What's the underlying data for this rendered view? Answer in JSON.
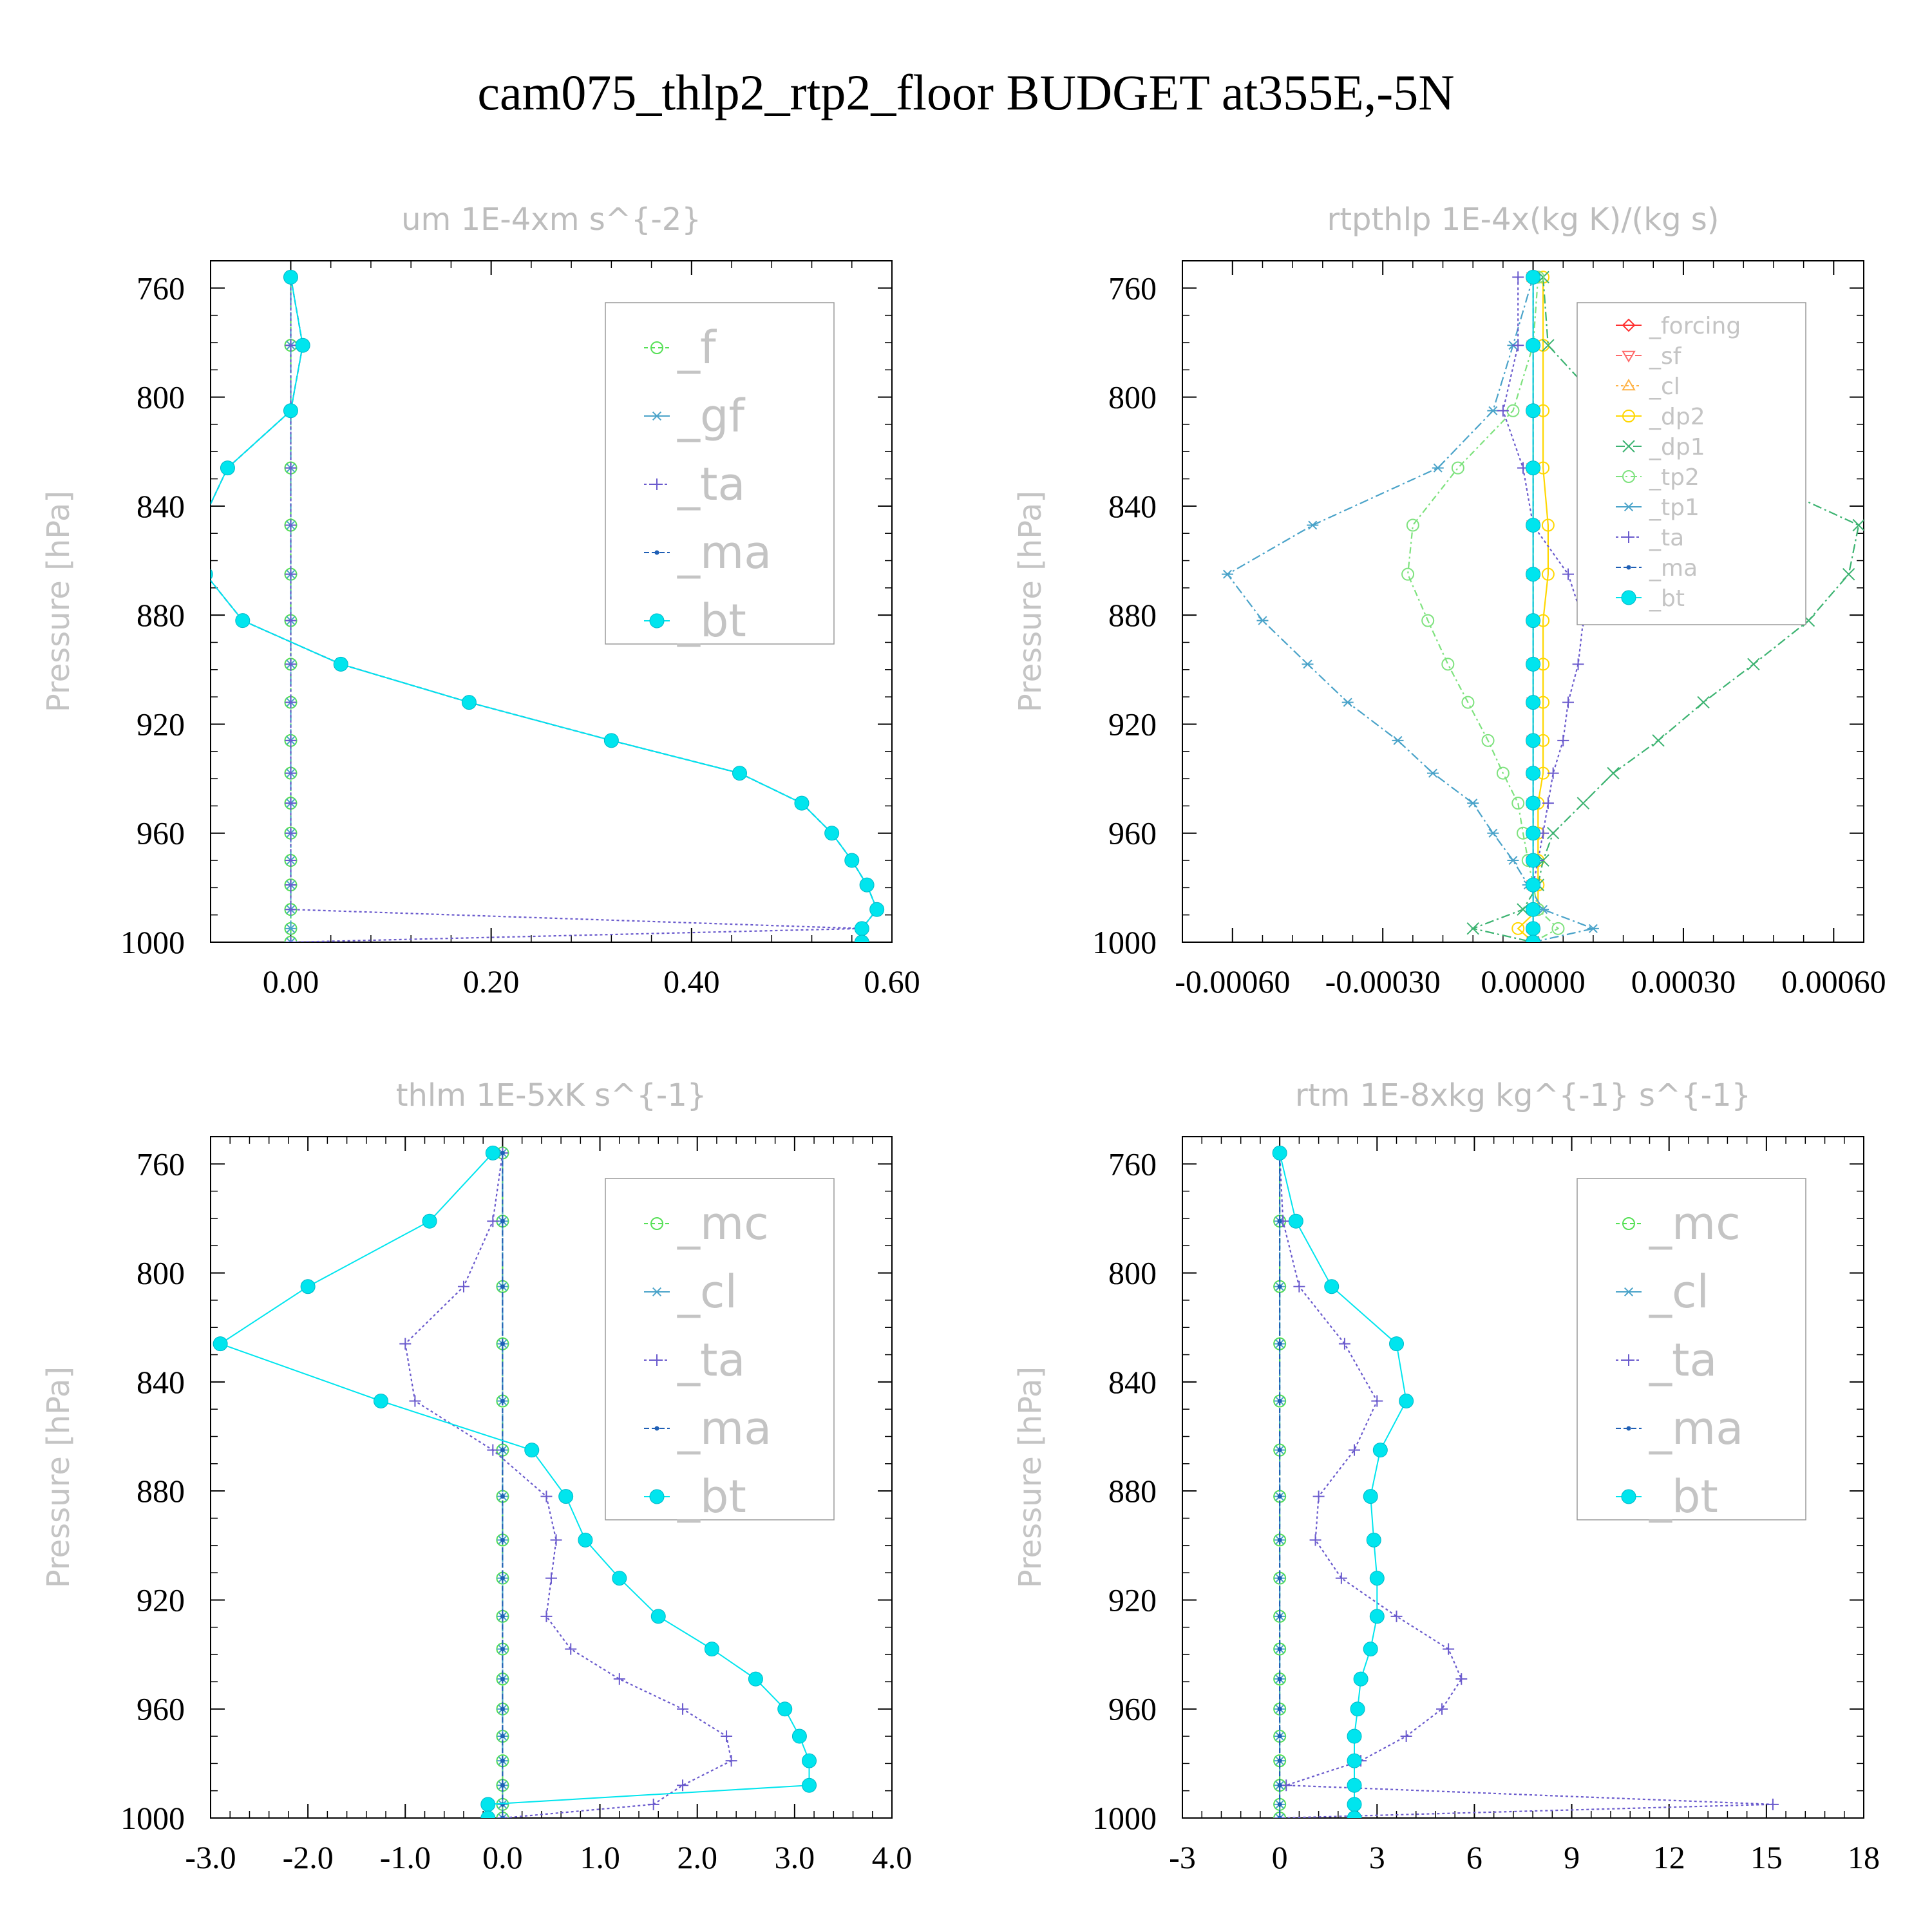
{
  "title": "cam075_thlp2_rtp2_floor  BUDGET at355E,-5N",
  "chart_data": [
    {
      "type": "line",
      "title": "um  1E-4xm s^{-2}",
      "ylabel": "Pressure [hPa]",
      "xlim": [
        -0.08,
        0.6
      ],
      "xticks": [
        0.0,
        0.2,
        0.4,
        0.6
      ],
      "xtick_labels": [
        "0.00",
        "0.20",
        "0.40",
        "0.60"
      ],
      "ylim": [
        750,
        1000
      ],
      "yticks": [
        760,
        800,
        840,
        880,
        920,
        960,
        1000
      ],
      "ytick_labels": [
        "760",
        "800",
        "840",
        "880",
        "920",
        "960",
        "1000"
      ],
      "legend": "top-right",
      "legend_size": "large",
      "levels": [
        756,
        781,
        805,
        826,
        847,
        865,
        882,
        898,
        912,
        926,
        938,
        949,
        960,
        970,
        979,
        988,
        995,
        1000
      ],
      "series": [
        {
          "name": "_f",
          "color": "#55e055",
          "marker": "circle",
          "dash": "6,5",
          "values": [
            0,
            0,
            0,
            0,
            0,
            0,
            0,
            0,
            0,
            0,
            0,
            0,
            0,
            0,
            0,
            0,
            0,
            0
          ]
        },
        {
          "name": "_gf",
          "color": "#4aa3c9",
          "marker": "asterisk",
          "dash": "14,5,3,5",
          "values": [
            0,
            0,
            0,
            0,
            0,
            0,
            0,
            0,
            0,
            0,
            0,
            0,
            0,
            0,
            0,
            0,
            0,
            0
          ]
        },
        {
          "name": "_ta",
          "color": "#6a5acd",
          "marker": "plus",
          "dash": "4,4",
          "values": [
            0,
            0,
            0,
            0,
            0,
            0,
            0,
            0,
            0,
            0,
            0,
            0,
            0,
            0,
            0,
            0,
            0.57,
            0
          ]
        },
        {
          "name": "_ma",
          "color": "#1f5fb5",
          "marker": "dot",
          "dash": "8,4",
          "values": [
            0,
            0.012,
            0,
            -0.063,
            -0.09,
            -0.085,
            -0.048,
            0.05,
            0.178,
            0.32,
            0.448,
            0.51,
            0.54,
            0.56,
            0.575,
            0.585,
            0.57,
            0.57
          ]
        },
        {
          "name": "_bt",
          "color": "#00e5ee",
          "marker": "filled",
          "dash": "",
          "values": [
            0,
            0.012,
            0,
            -0.063,
            -0.09,
            -0.085,
            -0.048,
            0.05,
            0.178,
            0.32,
            0.448,
            0.51,
            0.54,
            0.56,
            0.575,
            0.585,
            0.57,
            0.57
          ]
        }
      ]
    },
    {
      "type": "line",
      "title": "rtpthlp  1E-4x(kg K)/(kg s)",
      "ylabel": "Pressure [hPa]",
      "xlim": [
        -0.0007,
        0.00066
      ],
      "xticks": [
        -0.0006,
        -0.0003,
        0.0,
        0.0003,
        0.0006
      ],
      "xtick_labels": [
        "-0.00060",
        "-0.00030",
        "0.00000",
        "0.00030",
        "0.00060"
      ],
      "ylim": [
        750,
        1000
      ],
      "yticks": [
        760,
        800,
        840,
        880,
        920,
        960,
        1000
      ],
      "ytick_labels": [
        "760",
        "800",
        "840",
        "880",
        "920",
        "960",
        "1000"
      ],
      "legend": "top-right",
      "legend_size": "small",
      "levels": [
        756,
        781,
        805,
        826,
        847,
        865,
        882,
        898,
        912,
        926,
        938,
        949,
        960,
        970,
        979,
        988,
        995,
        1000
      ],
      "series": [
        {
          "name": "_forcing",
          "color": "#ff3030",
          "marker": "diamond",
          "dash": "",
          "values": [
            0,
            0,
            0,
            0,
            0,
            0,
            0,
            0,
            0,
            0,
            0,
            0,
            0,
            0,
            0,
            0,
            0,
            0
          ]
        },
        {
          "name": "_sf",
          "color": "#ff6a6a",
          "marker": "tri-down",
          "dash": "10,5",
          "values": [
            0,
            0,
            0,
            0,
            0,
            0,
            0,
            0,
            0,
            0,
            0,
            0,
            0,
            0,
            0,
            0,
            0,
            0
          ]
        },
        {
          "name": "_cl",
          "color": "#ffb347",
          "marker": "tri-up",
          "dash": "4,4",
          "values": [
            0,
            0,
            0,
            0,
            0,
            0,
            0,
            0,
            0,
            0,
            0,
            0,
            0,
            0,
            0,
            0,
            0,
            0
          ]
        },
        {
          "name": "_dp2",
          "color": "#ffd700",
          "marker": "circle",
          "dash": "",
          "values": [
            2e-05,
            2e-05,
            2e-05,
            2e-05,
            3e-05,
            3e-05,
            2e-05,
            2e-05,
            2e-05,
            2e-05,
            2e-05,
            1e-05,
            1e-05,
            1e-05,
            1e-05,
            1e-05,
            -3e-05,
            0
          ]
        },
        {
          "name": "_dp1",
          "color": "#3cb371",
          "marker": "cross",
          "dash": "14,5,3,5",
          "values": [
            2e-05,
            3e-05,
            0.00015,
            0.0004,
            0.00065,
            0.00063,
            0.00055,
            0.00044,
            0.00034,
            0.00025,
            0.00016,
            0.0001,
            4e-05,
            2e-05,
            1e-05,
            -2e-05,
            -0.00012,
            0
          ]
        },
        {
          "name": "_tp2",
          "color": "#7ee27e",
          "marker": "circle",
          "dash": "10,5,3,5",
          "values": [
            1e-05,
            0,
            -4e-05,
            -0.00015,
            -0.00024,
            -0.00025,
            -0.00021,
            -0.00017,
            -0.00013,
            -9e-05,
            -6e-05,
            -3e-05,
            -2e-05,
            -1e-05,
            0,
            1e-05,
            5e-05,
            0
          ]
        },
        {
          "name": "_tp1",
          "color": "#4aa3c9",
          "marker": "asterisk",
          "dash": "14,5,3,5",
          "values": [
            0,
            -4e-05,
            -8e-05,
            -0.00019,
            -0.00044,
            -0.00061,
            -0.00054,
            -0.00045,
            -0.00037,
            -0.00027,
            -0.0002,
            -0.00012,
            -8e-05,
            -4e-05,
            -1e-05,
            2e-05,
            0.00012,
            0
          ]
        },
        {
          "name": "_ta",
          "color": "#6a5acd",
          "marker": "plus",
          "dash": "4,4",
          "values": [
            -3e-05,
            -3e-05,
            -6e-05,
            -2e-05,
            0,
            7e-05,
            0.0001,
            9e-05,
            7e-05,
            6e-05,
            4e-05,
            3e-05,
            2e-05,
            1e-05,
            0,
            0,
            0,
            0
          ]
        },
        {
          "name": "_ma",
          "color": "#1f5fb5",
          "marker": "dot",
          "dash": "8,4",
          "values": [
            0,
            0,
            0,
            0,
            0,
            0,
            0,
            0,
            0,
            0,
            0,
            0,
            0,
            0,
            0,
            0,
            0,
            0
          ]
        },
        {
          "name": "_bt",
          "color": "#00e5ee",
          "marker": "filled",
          "dash": "",
          "values": [
            0,
            0,
            0,
            0,
            0,
            0,
            0,
            0,
            0,
            0,
            0,
            0,
            0,
            0,
            0,
            0,
            0,
            0
          ]
        }
      ]
    },
    {
      "type": "line",
      "title": "thlm  1E-5xK s^{-1}",
      "ylabel": "Pressure [hPa]",
      "xlim": [
        -3.0,
        4.0
      ],
      "xticks": [
        -3.0,
        -2.0,
        -1.0,
        0.0,
        1.0,
        2.0,
        3.0,
        4.0
      ],
      "xtick_labels": [
        "-3.0",
        "-2.0",
        "-1.0",
        "0.0",
        "1.0",
        "2.0",
        "3.0",
        "4.0"
      ],
      "ylim": [
        750,
        1000
      ],
      "yticks": [
        760,
        800,
        840,
        880,
        920,
        960,
        1000
      ],
      "ytick_labels": [
        "760",
        "800",
        "840",
        "880",
        "920",
        "960",
        "1000"
      ],
      "legend": "top-right",
      "legend_size": "large",
      "levels": [
        756,
        781,
        805,
        826,
        847,
        865,
        882,
        898,
        912,
        926,
        938,
        949,
        960,
        970,
        979,
        988,
        995,
        1000
      ],
      "series": [
        {
          "name": "_mc",
          "color": "#55e055",
          "marker": "circle",
          "dash": "6,5",
          "values": [
            0,
            0,
            0,
            0,
            0,
            0,
            0,
            0,
            0,
            0,
            0,
            0,
            0,
            0,
            0,
            0,
            0,
            0
          ]
        },
        {
          "name": "_cl",
          "color": "#4aa3c9",
          "marker": "asterisk",
          "dash": "14,5,3,5",
          "values": [
            0,
            0,
            0,
            0,
            0,
            0,
            0,
            0,
            0,
            0,
            0,
            0,
            0,
            0,
            0,
            0,
            0,
            0
          ]
        },
        {
          "name": "_ta",
          "color": "#6a5acd",
          "marker": "plus",
          "dash": "4,4",
          "values": [
            0,
            -0.1,
            -0.4,
            -1.0,
            -0.9,
            -0.1,
            0.45,
            0.55,
            0.5,
            0.45,
            0.7,
            1.2,
            1.85,
            2.3,
            2.35,
            1.85,
            1.55,
            0
          ]
        },
        {
          "name": "_ma",
          "color": "#1f5fb5",
          "marker": "dot",
          "dash": "8,4",
          "values": [
            0,
            0,
            0,
            0,
            0,
            0,
            0,
            0,
            0,
            0,
            0,
            0,
            0,
            0,
            0,
            0,
            0,
            0
          ]
        },
        {
          "name": "_bt",
          "color": "#00e5ee",
          "marker": "filled",
          "dash": "",
          "values": [
            -0.1,
            -0.75,
            -2.0,
            -2.9,
            -1.25,
            0.3,
            0.65,
            0.85,
            1.2,
            1.6,
            2.15,
            2.6,
            2.9,
            3.05,
            3.15,
            3.15,
            -0.15,
            -0.15
          ]
        }
      ]
    },
    {
      "type": "line",
      "title": "rtm  1E-8xkg kg^{-1} s^{-1}",
      "ylabel": "Pressure [hPa]",
      "xlim": [
        -3,
        18
      ],
      "xticks": [
        -3,
        0,
        3,
        6,
        9,
        12,
        15,
        18
      ],
      "xtick_labels": [
        "-3",
        "0",
        "3",
        "6",
        "9",
        "12",
        "15",
        "18"
      ],
      "ylim": [
        750,
        1000
      ],
      "yticks": [
        760,
        800,
        840,
        880,
        920,
        960,
        1000
      ],
      "ytick_labels": [
        "760",
        "800",
        "840",
        "880",
        "920",
        "960",
        "1000"
      ],
      "legend": "top-right",
      "legend_size": "large",
      "levels": [
        756,
        781,
        805,
        826,
        847,
        865,
        882,
        898,
        912,
        926,
        938,
        949,
        960,
        970,
        979,
        988,
        995,
        1000
      ],
      "series": [
        {
          "name": "_mc",
          "color": "#55e055",
          "marker": "circle",
          "dash": "6,5",
          "values": [
            0,
            0,
            0,
            0,
            0,
            0,
            0,
            0,
            0,
            0,
            0,
            0,
            0,
            0,
            0,
            0,
            0,
            0
          ]
        },
        {
          "name": "_cl",
          "color": "#4aa3c9",
          "marker": "asterisk",
          "dash": "14,5,3,5",
          "values": [
            0,
            0,
            0,
            0,
            0,
            0,
            0,
            0,
            0,
            0,
            0,
            0,
            0,
            0,
            0,
            0,
            0,
            0
          ]
        },
        {
          "name": "_ta",
          "color": "#6a5acd",
          "marker": "plus",
          "dash": "4,4",
          "values": [
            0,
            0.1,
            0.6,
            2.0,
            3.0,
            2.3,
            1.2,
            1.1,
            1.9,
            3.6,
            5.2,
            5.6,
            5.0,
            3.9,
            2.5,
            0.2,
            15.2,
            0
          ]
        },
        {
          "name": "_ma",
          "color": "#1f5fb5",
          "marker": "dot",
          "dash": "8,4",
          "values": [
            0,
            0,
            0,
            0,
            0,
            0,
            0,
            0,
            0,
            0,
            0,
            0,
            0,
            0,
            0,
            0,
            0,
            0
          ]
        },
        {
          "name": "_bt",
          "color": "#00e5ee",
          "marker": "filled",
          "dash": "",
          "values": [
            0,
            0.5,
            1.6,
            3.6,
            3.9,
            3.1,
            2.8,
            2.9,
            3.0,
            3.0,
            2.8,
            2.5,
            2.4,
            2.3,
            2.3,
            2.3,
            2.3,
            2.3
          ]
        }
      ]
    }
  ]
}
